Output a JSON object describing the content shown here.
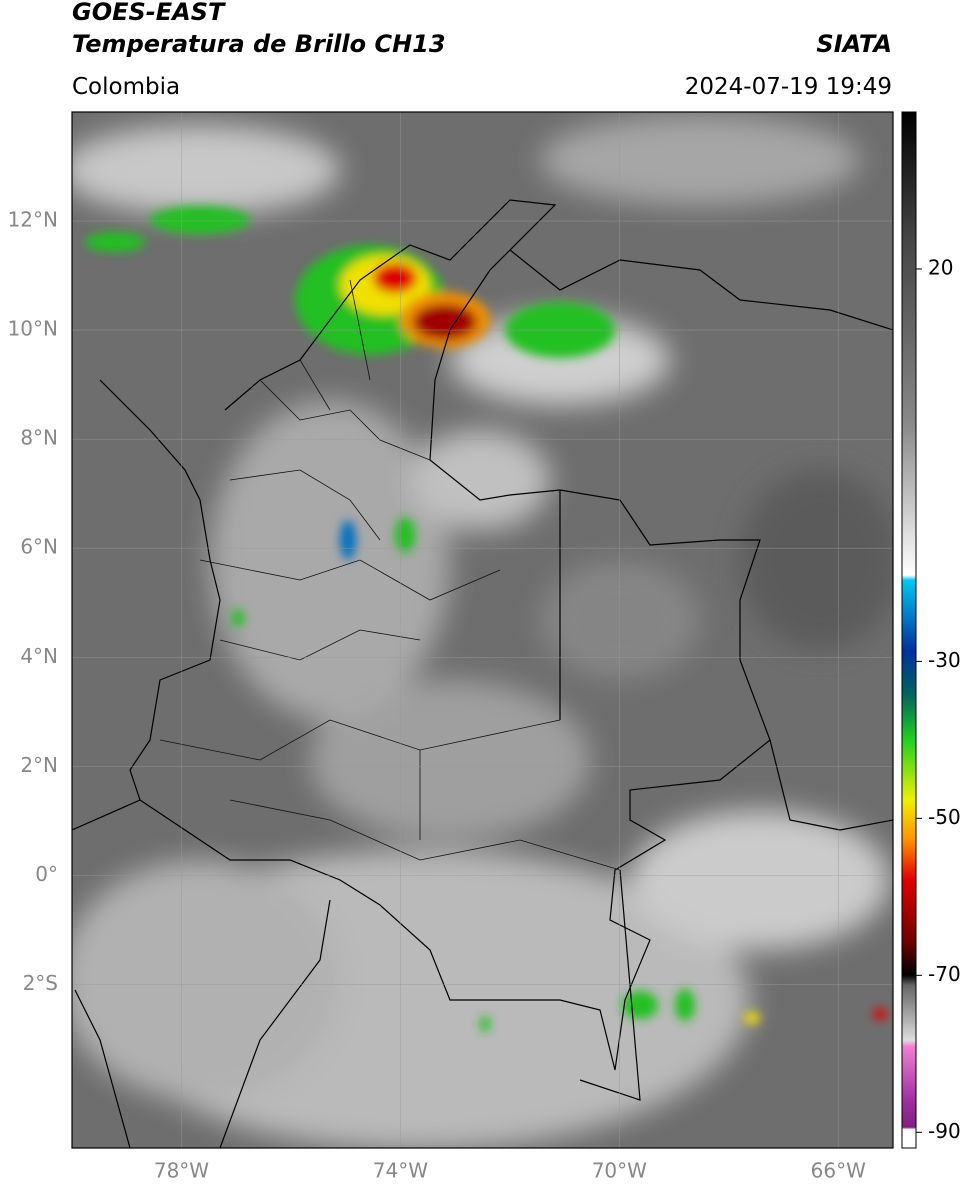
{
  "header": {
    "title": "GOES-EAST",
    "subtitle": "Temperatura de Brillo CH13",
    "source": "SIATA",
    "region": "Colombia",
    "datetime": "2024-07-19 19:49"
  },
  "map": {
    "xlim": [
      -80,
      -65
    ],
    "ylim": [
      -5,
      14
    ],
    "xticks": [
      {
        "value": -78,
        "label": "78°W"
      },
      {
        "value": -74,
        "label": "74°W"
      },
      {
        "value": -70,
        "label": "70°W"
      },
      {
        "value": -66,
        "label": "66°W"
      }
    ],
    "yticks": [
      {
        "value": 12,
        "label": "12°N"
      },
      {
        "value": 10,
        "label": "10°N"
      },
      {
        "value": 8,
        "label": "8°N"
      },
      {
        "value": 6,
        "label": "6°N"
      },
      {
        "value": 4,
        "label": "4°N"
      },
      {
        "value": 2,
        "label": "2°N"
      },
      {
        "value": 0,
        "label": "0°"
      },
      {
        "value": -2,
        "label": "2°S"
      }
    ],
    "grid": true
  },
  "colorbar": {
    "lim": [
      -92,
      40
    ],
    "ticks": [
      20,
      -30,
      -50,
      -70,
      -90
    ]
  }
}
